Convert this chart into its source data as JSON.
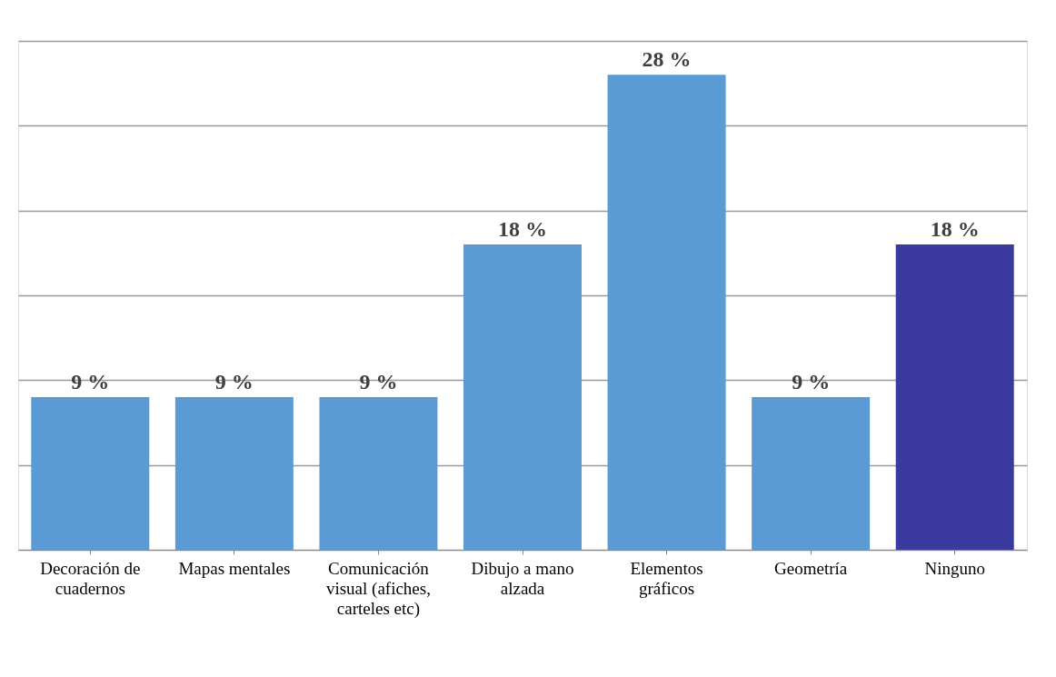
{
  "chart_data": {
    "type": "bar",
    "categories": [
      "Decoración de cuadernos",
      "Mapas mentales",
      "Comunicación visual (afiches, carteles etc)",
      "Dibujo a mano alzada",
      "Elementos gráficos",
      "Geometría",
      "Ninguno"
    ],
    "values": [
      9,
      9,
      9,
      18,
      28,
      9,
      18
    ],
    "colors": [
      "#5b9bd5",
      "#5b9bd5",
      "#5b9bd5",
      "#5b9bd5",
      "#5b9bd5",
      "#5b9bd5",
      "#3a3a9e"
    ],
    "value_labels": [
      "9 %",
      "9 %",
      "9 %",
      "18 %",
      "28 %",
      "9 %",
      "18 %"
    ],
    "ylim": [
      0,
      30
    ],
    "yticks": [
      {
        "value": 0,
        "label": null
      },
      {
        "value": 5,
        "label": null
      },
      {
        "value": 10,
        "label": null
      },
      {
        "value": 15,
        "label": null
      },
      {
        "value": 20,
        "label": null
      },
      {
        "value": 25,
        "label": null
      },
      {
        "value": 30,
        "label": null
      }
    ],
    "grid": "y",
    "tick_labels": "x"
  }
}
